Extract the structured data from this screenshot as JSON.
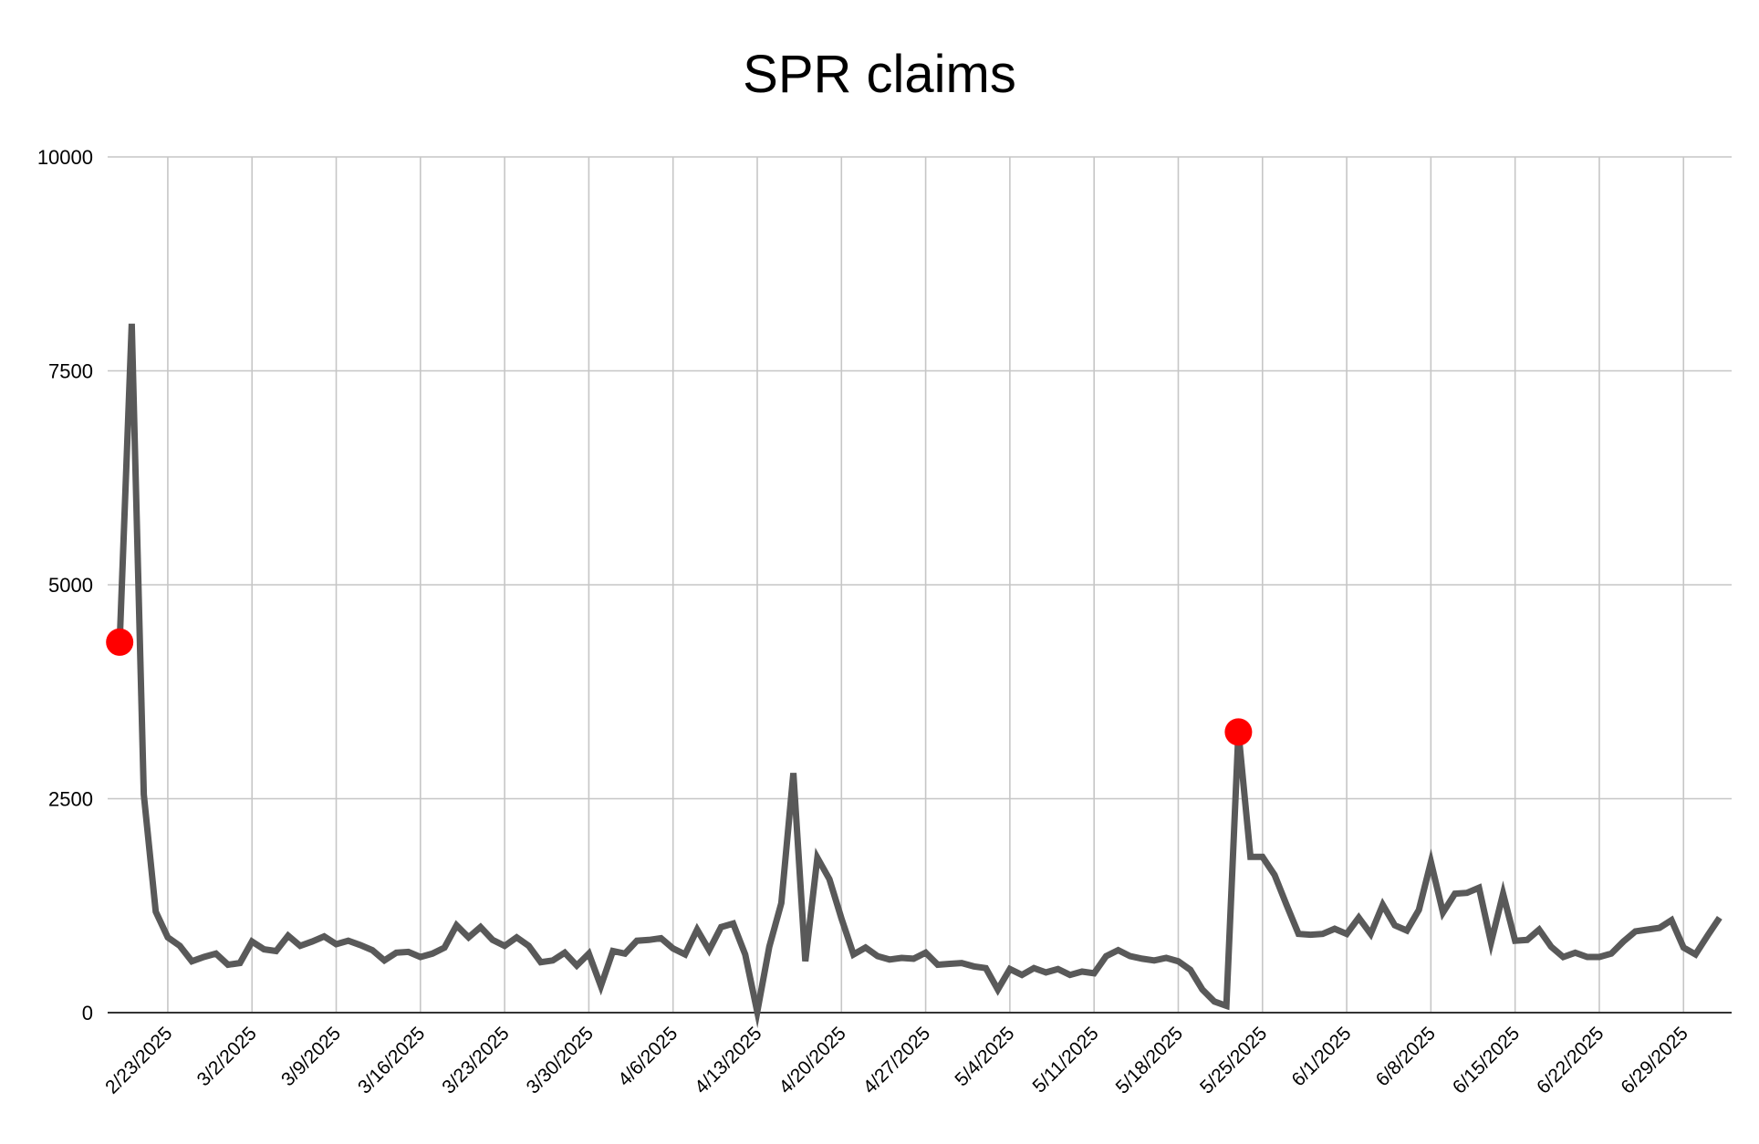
{
  "chart_data": {
    "type": "line",
    "title": "SPR claims",
    "xlabel": "",
    "ylabel": "",
    "ylim": [
      0,
      10000
    ],
    "yticks": [
      0,
      2500,
      5000,
      7500,
      10000
    ],
    "xlim": [
      "2025-02-18",
      "2025-07-03"
    ],
    "xticks": [
      {
        "date": "2025-02-23",
        "label": "2/23/2025"
      },
      {
        "date": "2025-03-02",
        "label": "3/2/2025"
      },
      {
        "date": "2025-03-09",
        "label": "3/9/2025"
      },
      {
        "date": "2025-03-16",
        "label": "3/16/2025"
      },
      {
        "date": "2025-03-23",
        "label": "3/23/2025"
      },
      {
        "date": "2025-03-30",
        "label": "3/30/2025"
      },
      {
        "date": "2025-04-06",
        "label": "4/6/2025"
      },
      {
        "date": "2025-04-13",
        "label": "4/13/2025"
      },
      {
        "date": "2025-04-20",
        "label": "4/20/2025"
      },
      {
        "date": "2025-04-27",
        "label": "4/27/2025"
      },
      {
        "date": "2025-05-04",
        "label": "5/4/2025"
      },
      {
        "date": "2025-05-11",
        "label": "5/11/2025"
      },
      {
        "date": "2025-05-18",
        "label": "5/18/2025"
      },
      {
        "date": "2025-05-25",
        "label": "5/25/2025"
      },
      {
        "date": "2025-06-01",
        "label": "6/1/2025"
      },
      {
        "date": "2025-06-08",
        "label": "6/8/2025"
      },
      {
        "date": "2025-06-15",
        "label": "6/15/2025"
      },
      {
        "date": "2025-06-22",
        "label": "6/22/2025"
      },
      {
        "date": "2025-06-29",
        "label": "6/29/2025"
      }
    ],
    "grid": true,
    "legend": "none",
    "line_color": "#595959",
    "highlight_color": "#ff0000",
    "start_date": "2025-02-19",
    "series": [
      {
        "values": [
          4330,
          8050,
          2550,
          1180,
          880,
          780,
          600,
          650,
          690,
          560,
          580,
          830,
          740,
          720,
          900,
          780,
          830,
          890,
          800,
          840,
          790,
          730,
          610,
          700,
          710,
          650,
          690,
          760,
          1020,
          880,
          1000,
          850,
          780,
          880,
          780,
          590,
          610,
          700,
          550,
          690,
          310,
          720,
          690,
          840,
          850,
          870,
          750,
          680,
          970,
          730,
          1000,
          1040,
          680,
          10,
          770,
          1280,
          2800,
          600,
          1810,
          1560,
          1100,
          680,
          760,
          660,
          620,
          640,
          630,
          700,
          560,
          570,
          580,
          540,
          520,
          270,
          510,
          440,
          520,
          470,
          510,
          440,
          480,
          460,
          660,
          730,
          660,
          630,
          610,
          640,
          600,
          500,
          270,
          130,
          80,
          3280,
          1820,
          1820,
          1610,
          1260,
          920,
          910,
          920,
          980,
          920,
          1110,
          920,
          1260,
          1020,
          960,
          1200,
          1760,
          1170,
          1390,
          1400,
          1460,
          820,
          1390,
          840,
          850,
          970,
          770,
          650,
          700,
          650,
          650,
          690,
          830,
          950,
          970,
          990,
          1080,
          760,
          680,
          900,
          1110
        ]
      }
    ],
    "highlighted_points": [
      {
        "date": "2025-02-19",
        "value": 4330
      },
      {
        "date": "2025-05-23",
        "value": 3280
      }
    ]
  }
}
